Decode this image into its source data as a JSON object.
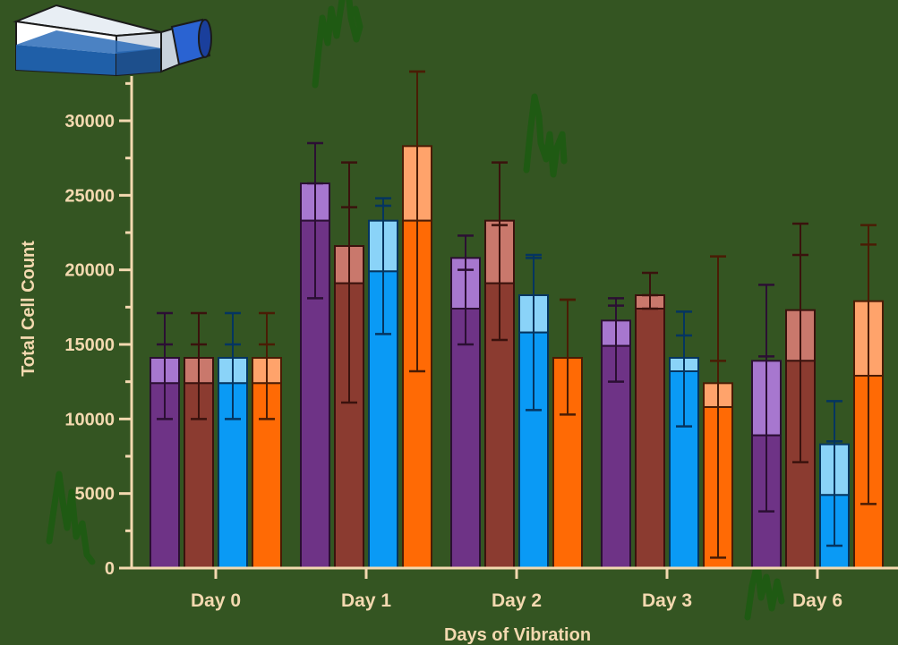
{
  "colors": {
    "background": "#345522",
    "axis": "#f3d9b0",
    "text": "#f3d9b0",
    "series": [
      "#6e3386",
      "#8b3b30",
      "#0a9af5",
      "#ff6a05"
    ],
    "series_light": [
      "#a777cf",
      "#c9786c",
      "#8ad3f8",
      "#ffa36b"
    ],
    "errorbar": [
      "#2b0f33",
      "#3a120d",
      "#053560",
      "#4a1c05"
    ],
    "scribble": "#1f5a13"
  },
  "icons": {
    "flask": "cell-culture-flask-icon",
    "scribbles": "green-scribble-mark"
  },
  "chart_data": {
    "type": "bar",
    "title": "",
    "xlabel": "Days of Vibration",
    "ylabel": "Total Cell Count",
    "ylim": [
      0,
      33000
    ],
    "yticks": [
      0,
      5000,
      10000,
      15000,
      20000,
      25000,
      30000
    ],
    "ytick_labels": [
      "0",
      "5000",
      "10000",
      "15000",
      "20000",
      "25000",
      "30000"
    ],
    "grid": false,
    "legend": "none",
    "categories": [
      "Day 0",
      "Day 1",
      "Day 2",
      "Day 3",
      "Day 6"
    ],
    "series": [
      {
        "values": [
          14100,
          25800,
          20800,
          16600,
          13900
        ],
        "lower_values": [
          12400,
          23300,
          17400,
          14900,
          8900
        ],
        "error_high": [
          17100,
          28500,
          22300,
          18100,
          19000
        ],
        "error_low": [
          10000,
          18100,
          15000,
          12500,
          3800
        ],
        "error_mid_high": [
          15000,
          25800,
          20000,
          17600,
          14200
        ]
      },
      {
        "values": [
          14100,
          21600,
          23300,
          18300,
          17300
        ],
        "lower_values": [
          12400,
          19100,
          19100,
          17400,
          13900
        ],
        "error_high": [
          17100,
          27200,
          27200,
          19800,
          23100
        ],
        "error_low": [
          10000,
          11100,
          15300,
          17400,
          7100
        ],
        "error_mid_high": [
          15000,
          24200,
          23000,
          18300,
          21000
        ]
      },
      {
        "values": [
          14100,
          23300,
          18300,
          14100,
          8300
        ],
        "lower_values": [
          12400,
          19900,
          15800,
          13200,
          4900
        ],
        "error_high": [
          17100,
          24800,
          21000,
          17200,
          11200
        ],
        "error_low": [
          10000,
          15700,
          10600,
          9500,
          1500
        ],
        "error_mid_high": [
          15000,
          24300,
          20800,
          15600,
          8500
        ]
      },
      {
        "values": [
          14100,
          28300,
          14100,
          12400,
          17900
        ],
        "lower_values": [
          12400,
          23300,
          14100,
          10800,
          12900
        ],
        "error_high": [
          17100,
          33300,
          18000,
          20900,
          23000
        ],
        "error_low": [
          10000,
          13200,
          10300,
          700,
          4300
        ],
        "error_mid_high": [
          15000,
          33300,
          18000,
          13900,
          21700
        ]
      }
    ]
  }
}
